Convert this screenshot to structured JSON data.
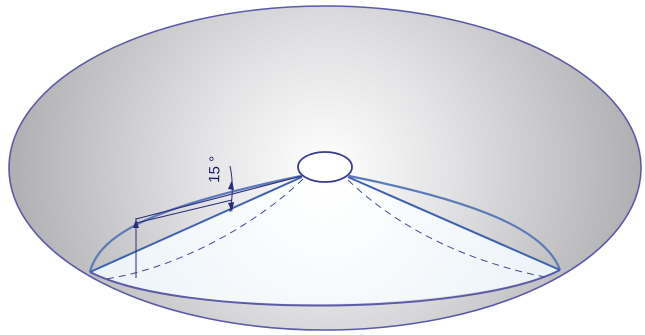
{
  "diagram": {
    "angle_label": "15 °"
  },
  "colors": {
    "outline": "#5a5aa8",
    "cone_edge": "#3e62b0",
    "dimension": "#2a2a7a",
    "dashed": "#4a4a90",
    "surface_light": "#ffffff",
    "surface_dark": "#a9a9ab",
    "cone_fill": "#f3f8fc"
  }
}
